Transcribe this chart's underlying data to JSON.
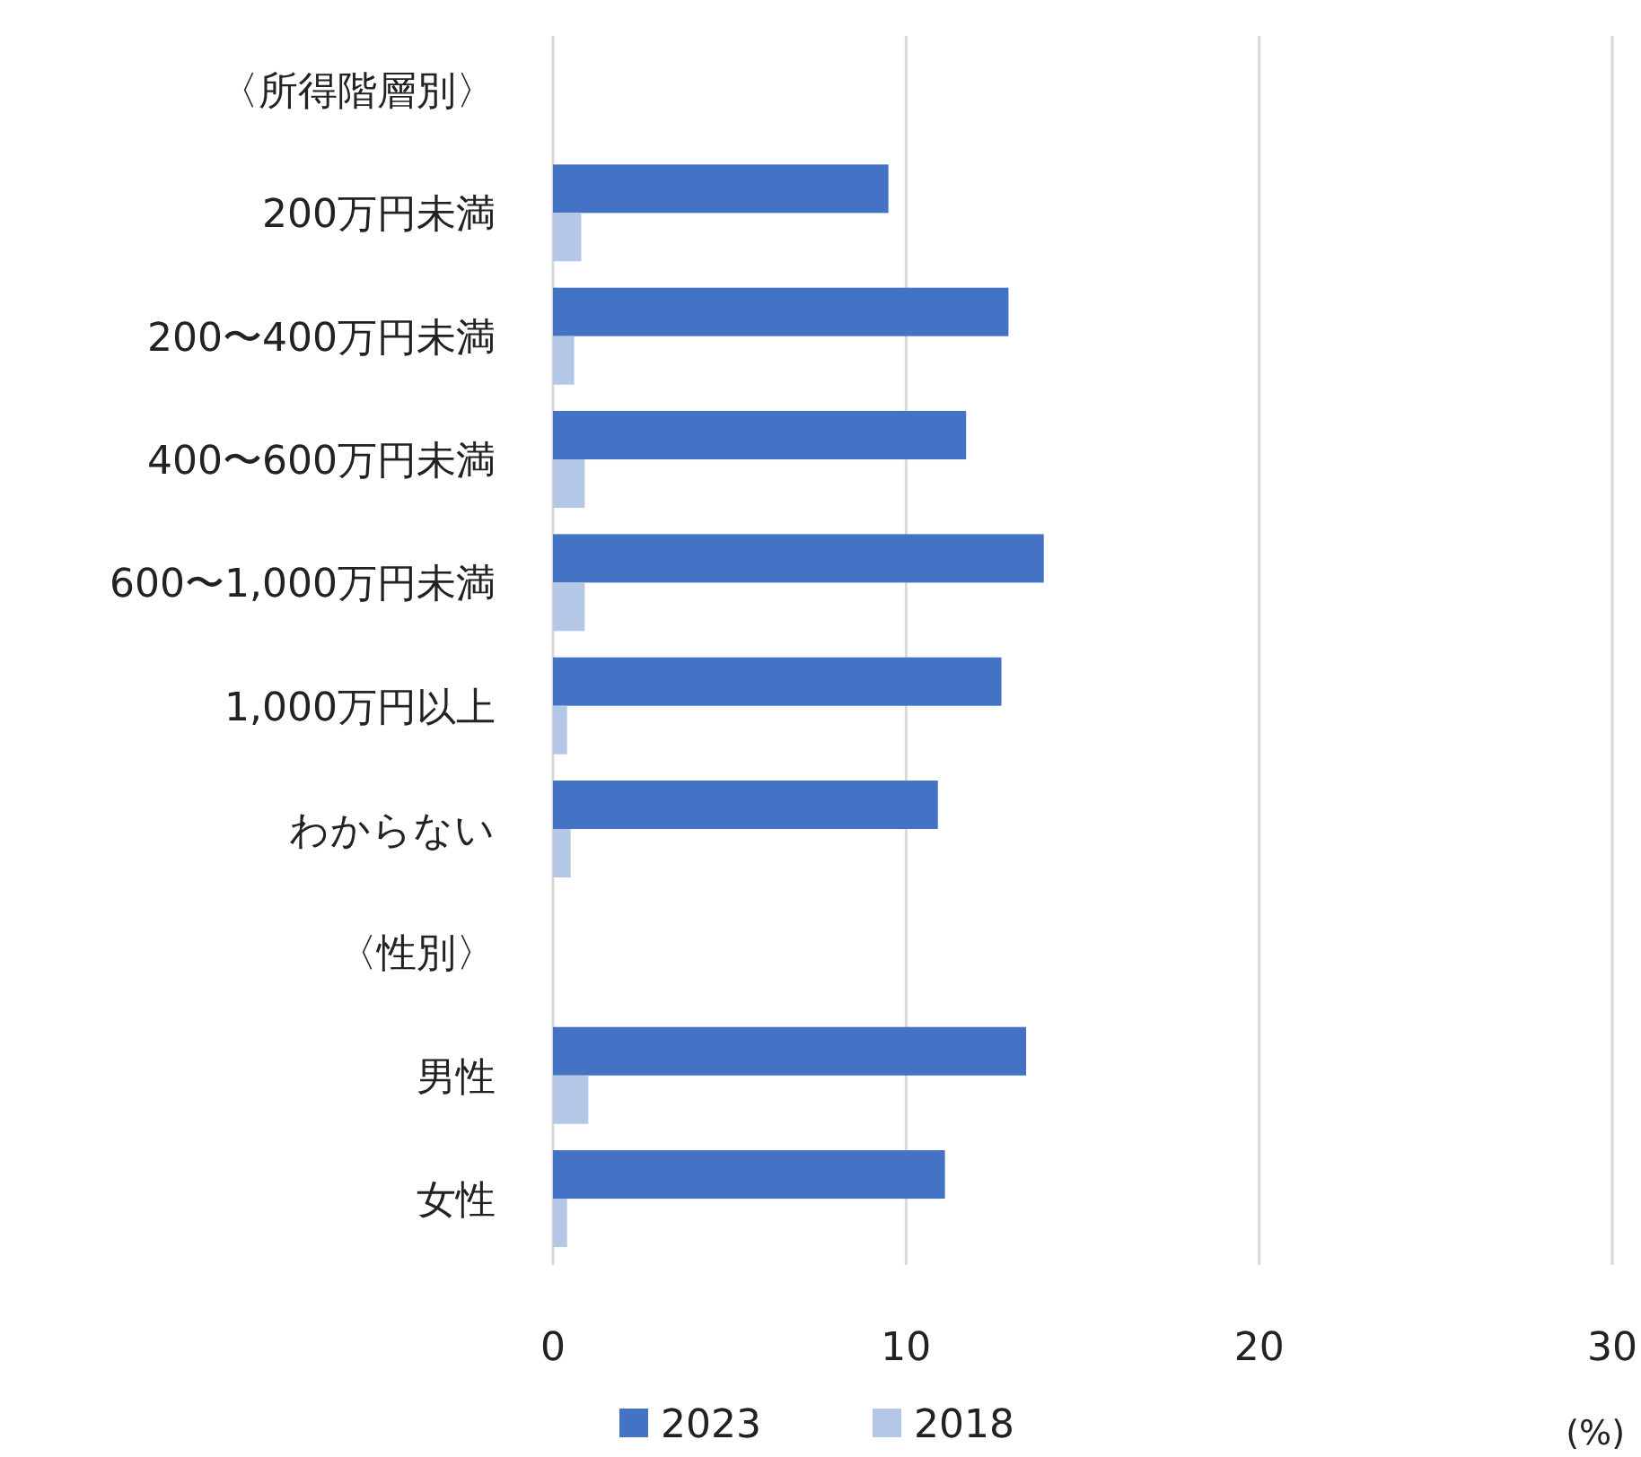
{
  "chart_data": {
    "type": "bar",
    "orientation": "horizontal",
    "categories": [
      "〈所得階層別〉",
      "200万円未満",
      "200〜400万円未満",
      "400〜600万円未満",
      "600〜1,000万円未満",
      "1,000万円以上",
      "わからない",
      "〈性別〉",
      "男性",
      "女性"
    ],
    "series": [
      {
        "name": "2023",
        "color": "#4472c4",
        "values": [
          null,
          9.5,
          12.9,
          11.7,
          13.9,
          12.7,
          10.9,
          null,
          13.4,
          11.1
        ]
      },
      {
        "name": "2018",
        "color": "#b4c7e7",
        "values": [
          null,
          0.8,
          0.6,
          0.9,
          0.9,
          0.4,
          0.5,
          null,
          1.0,
          0.4
        ]
      }
    ],
    "xlim": [
      0,
      30
    ],
    "xticks": [
      0,
      10,
      20,
      30
    ],
    "xlabel": "(%)",
    "grid": "x",
    "legend": "bottom"
  }
}
